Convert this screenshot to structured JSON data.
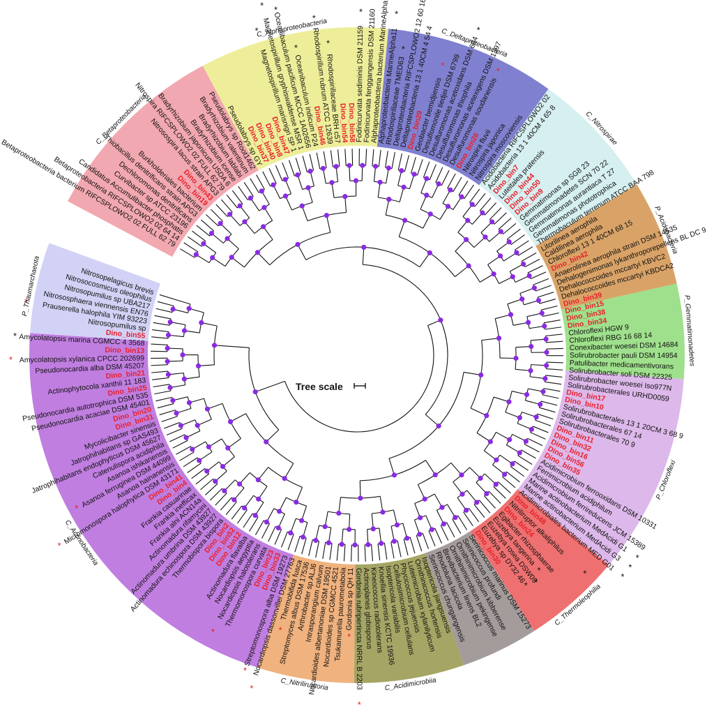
{
  "scale_label": "Tree scale",
  "colors": {
    "bold_bin": "#e8202a",
    "node_dot": "#8a2be2",
    "branch": "#111111"
  },
  "clades": [
    {
      "name": "C_Betaproteobacteria",
      "color": "#f2a8b0",
      "start": 10,
      "end": 111
    },
    {
      "name": "C_Alphaproteobacteria",
      "color": "#eeee9a",
      "start": 111,
      "end": 211
    },
    {
      "name": "C_Deltaproteobacteria",
      "color": "#8080d0",
      "start": 211,
      "end": 301
    },
    {
      "name": "C_Nitrospirae",
      "color": "#d6eff0",
      "start": 301,
      "end": 369
    },
    {
      "name": "P_Acidobacteria",
      "color": "#d9a368",
      "start": 369,
      "end": 425
    },
    {
      "name": "P_Gemmatimonadetes",
      "color": "#9fe08c",
      "start": 425,
      "end": 475
    },
    {
      "name": "P_Chloroflexi",
      "color": "#ddb8ea",
      "start": 475,
      "end": 581
    },
    {
      "name": "C_Thermoleophilia",
      "color": "#ee7070",
      "start": 581,
      "end": 633
    },
    {
      "name": "",
      "color": "#a49b9b",
      "start": 633,
      "end": 674
    },
    {
      "name": "C_Acidimicrobiia",
      "color": "#a5a565",
      "start": 674,
      "end": 732
    },
    {
      "name": "C_Nitriliruptoria",
      "color": "#f0b27e",
      "start": 732,
      "end": 783
    },
    {
      "name": "C_Actinobacteria",
      "color": "#c07ee0",
      "start": 783,
      "end": 1010
    },
    {
      "name": "P_Thaumarchaeota",
      "color": "#d2d2f6",
      "start": 1010,
      "end": 1058
    }
  ],
  "leaves": [
    {
      "label": "Betaproteobacteria bacterium RIFCSPLOWO2 02 FULL 62 79",
      "bold": false,
      "star": ""
    },
    {
      "label": "Betaproteobacteria RIFCSPLOWO2 02 64 14",
      "bold": false,
      "star": ""
    },
    {
      "label": "Candidatus Accumulibacter phosphatis",
      "bold": false,
      "star": ""
    },
    {
      "label": "Curvibacter sp ATCC 23196",
      "bold": false,
      "star": ""
    },
    {
      "label": "Dechloromonas denitrificans",
      "bold": false,
      "star": ""
    },
    {
      "label": "Thiobacillus denitrificans strain APG3",
      "bold": false,
      "star": ""
    },
    {
      "label": "Burkholderiales bacterium",
      "bold": false,
      "star": ""
    },
    {
      "label": "Dino_bin19",
      "bold": true,
      "star": ""
    },
    {
      "label": "Dino_bin43",
      "bold": true,
      "star": ""
    },
    {
      "label": "Nitrosospira lacus strain APG3",
      "bold": false,
      "star": ""
    },
    {
      "label": "Nitrospira RIFCSPLOWO2 02 FULL 62 79",
      "bold": false,
      "star": ""
    },
    {
      "label": "Bradyrhizobium japonicum USDA 6",
      "bold": false,
      "star": ""
    },
    {
      "label": "Bradyrhizobium icense",
      "bold": false,
      "star": ""
    },
    {
      "label": "Bradyrhizobium lablabi",
      "bold": false,
      "star": ""
    },
    {
      "label": "Bradyrhizobium valentinum",
      "bold": false,
      "star": ""
    },
    {
      "label": "Pseudolabrys sp Root1462",
      "bold": false,
      "star": ""
    },
    {
      "label": "Pseudolabrys sp GY",
      "bold": false,
      "star": ""
    },
    {
      "label": "Dino_bin37",
      "bold": true,
      "star": ""
    },
    {
      "label": "Dino_bin40",
      "bold": true,
      "star": ""
    },
    {
      "label": "Dino_bin8",
      "bold": true,
      "star": ""
    },
    {
      "label": "Dino_bin47",
      "bold": true,
      "star": ""
    },
    {
      "label": "Magnetospirillum marisnigri SP 1",
      "bold": false,
      "star": "black"
    },
    {
      "label": "Magnetospirillum gryphiswaldense MSR 1",
      "bold": false,
      "star": "black"
    },
    {
      "label": "Oceanibaculum pacificum MCCC 1A02656",
      "bold": false,
      "star": "black"
    },
    {
      "label": "Oceanibaculum indicum P24",
      "bold": false,
      "star": "black"
    },
    {
      "label": "Dino_bin46",
      "bold": true,
      "star": ""
    },
    {
      "label": "Rhodospirillum rubrum ATCC 12639",
      "bold": false,
      "star": "black"
    },
    {
      "label": "Rhodospirillaceae BRH c57",
      "bold": false,
      "star": "black"
    },
    {
      "label": "Dino_bin54",
      "bold": true,
      "star": ""
    },
    {
      "label": "Dino_bin58",
      "bold": true,
      "star": ""
    },
    {
      "label": "Fodinicurvata sediminis DSM 21159",
      "bold": false,
      "star": "black"
    },
    {
      "label": "Fodinicurvata fenggangensis DSM 21160",
      "bold": false,
      "star": "black"
    },
    {
      "label": "Alphaproteobacteria bacterium MarineAlpha10",
      "bold": false,
      "star": "black"
    },
    {
      "label": "Alphaproteobacteria MarineAlpha11",
      "bold": false,
      "star": "black"
    },
    {
      "label": "Rhodospirillaceae TMED63",
      "bold": false,
      "star": "black"
    },
    {
      "label": "Deltaproteobacteria RIFCSPLOWO2 12 60 16",
      "bold": false,
      "star": ""
    },
    {
      "label": "Deltaproteobacteria 13 1 40CM 4 54 4",
      "bold": false,
      "star": ""
    },
    {
      "label": "Dino_bin29",
      "bold": true,
      "star": ""
    },
    {
      "label": "Geobacter bemidjiensis",
      "bold": false,
      "star": "red"
    },
    {
      "label": "Desulfomonile tiedjei DSM 6799",
      "bold": false,
      "star": ""
    },
    {
      "label": "Desulfuromonas acetoxidans DSM 684",
      "bold": false,
      "star": "black"
    },
    {
      "label": "Desulfuromonas thiophila",
      "bold": false,
      "star": ""
    },
    {
      "label": "Desulfuromonas acetexigens DSM 1397",
      "bold": false,
      "star": ""
    },
    {
      "label": "Desulfuromonas soudanensis",
      "bold": false,
      "star": "red"
    },
    {
      "label": "Dino_bin26",
      "bold": true,
      "star": ""
    },
    {
      "label": "Nitrospira fluvii",
      "bold": false,
      "star": ""
    },
    {
      "label": "Nitrospira japonica",
      "bold": false,
      "star": ""
    },
    {
      "label": "Nitrospira moscoviensis",
      "bold": false,
      "star": ""
    },
    {
      "label": "Acidobacteria RIFCSPLOWO2 02",
      "bold": false,
      "star": ""
    },
    {
      "label": "Acidobacteria 13 1 40CM 4 65 8",
      "bold": false,
      "star": ""
    },
    {
      "label": "Dino_bin7",
      "bold": true,
      "star": ""
    },
    {
      "label": "Luteitalea pratensis",
      "bold": false,
      "star": ""
    },
    {
      "label": "Dino_bin44",
      "bold": true,
      "star": ""
    },
    {
      "label": "Dino_bin50",
      "bold": true,
      "star": ""
    },
    {
      "label": "Dino_bin9",
      "bold": true,
      "star": ""
    },
    {
      "label": "Gemmatimonas sp SG8 23",
      "bold": false,
      "star": ""
    },
    {
      "label": "Gemmatimonadetes SCN 70 22",
      "bold": false,
      "star": ""
    },
    {
      "label": "Gemmatimonas aurantiaca T 27",
      "bold": false,
      "star": ""
    },
    {
      "label": "Gemmatimonas phototrophica",
      "bold": false,
      "star": ""
    },
    {
      "label": "Thermobaculum terrenum ATCC BAA 798",
      "bold": false,
      "star": ""
    },
    {
      "label": "Litorilinea aerophila",
      "bold": false,
      "star": ""
    },
    {
      "label": "Caldilinea aerophila",
      "bold": false,
      "star": ""
    },
    {
      "label": "Chloroflexi 13 1 40CM 68 15",
      "bold": false,
      "star": ""
    },
    {
      "label": "Dino_bin42",
      "bold": true,
      "star": ""
    },
    {
      "label": "Anaerolinea aerophila strain DSM 14535",
      "bold": false,
      "star": ""
    },
    {
      "label": "Dehalogenimonas lykanthroporepellens BL DC 9",
      "bold": false,
      "star": ""
    },
    {
      "label": "Dehalococcoides mccartyi KBVC2",
      "bold": false,
      "star": ""
    },
    {
      "label": "Dehalococcoides mccartyi KBDCA2",
      "bold": false,
      "star": ""
    },
    {
      "label": "Dino_bin39",
      "bold": true,
      "star": ""
    },
    {
      "label": "Dino_bin15",
      "bold": true,
      "star": ""
    },
    {
      "label": "Dino_bin38",
      "bold": true,
      "star": ""
    },
    {
      "label": "Dino_bin34",
      "bold": true,
      "star": ""
    },
    {
      "label": "Chloroflexi HGW 9",
      "bold": false,
      "star": ""
    },
    {
      "label": "Chloroflexi RBG 16 68 14",
      "bold": false,
      "star": ""
    },
    {
      "label": "Conexibacter woesei DSM 14684",
      "bold": false,
      "star": ""
    },
    {
      "label": "Solirubrobacter pauli DSM 14954",
      "bold": false,
      "star": ""
    },
    {
      "label": "Patulibacter medicamentivorans",
      "bold": false,
      "star": ""
    },
    {
      "label": "Solirubrobacter soli DSM 22325",
      "bold": false,
      "star": ""
    },
    {
      "label": "Solirubrobacter woesei Iso977N",
      "bold": false,
      "star": ""
    },
    {
      "label": "Solirubrobacterales URHD0059",
      "bold": false,
      "star": ""
    },
    {
      "label": "Dino_bin17",
      "bold": true,
      "star": ""
    },
    {
      "label": "Dino_bin10",
      "bold": true,
      "star": ""
    },
    {
      "label": "Solirubrobacterales 13 1 20CM 3 68 9",
      "bold": false,
      "star": ""
    },
    {
      "label": "Solirubrobacterales 67 14",
      "bold": false,
      "star": ""
    },
    {
      "label": "Solirubrobacterales 70 9",
      "bold": false,
      "star": ""
    },
    {
      "label": "Dino_bin11",
      "bold": true,
      "star": ""
    },
    {
      "label": "Dino_bin32",
      "bold": true,
      "star": ""
    },
    {
      "label": "Dino_bin16",
      "bold": true,
      "star": ""
    },
    {
      "label": "Dino_bin56",
      "bold": true,
      "star": ""
    },
    {
      "label": "Dino_bin35",
      "bold": true,
      "star": ""
    },
    {
      "label": "Acidimicrobium ferrooxidans DSM 10331",
      "bold": false,
      "star": ""
    },
    {
      "label": "Ferrimicrobium acidiphilum",
      "bold": false,
      "star": ""
    },
    {
      "label": "Acidimicrobium ferrireducens JCM 15389",
      "bold": false,
      "star": ""
    },
    {
      "label": "Marine actinobacterium MedAcidi G1",
      "bold": false,
      "star": "black"
    },
    {
      "label": "Marine actinobacterium MedAcidi G3",
      "bold": false,
      "star": "black"
    },
    {
      "label": "Acidimicrobiales bacterium MED G01",
      "bold": false,
      "star": "black"
    },
    {
      "label": "Dino_bin48",
      "bold": true,
      "star": ""
    },
    {
      "label": "Nitriliruptor alkaliphilus",
      "bold": false,
      "star": "black"
    },
    {
      "label": "Dino_bin24",
      "bold": true,
      "star": ""
    },
    {
      "label": "Egibacter rhizosphaerae",
      "bold": false,
      "star": ""
    },
    {
      "label": "Euzebya tangerina",
      "bold": false,
      "star": "black"
    },
    {
      "label": "Euzebya rosea DSW09",
      "bold": false,
      "star": "black"
    },
    {
      "label": "Euzebya sp DY32 46",
      "bold": false,
      "star": "black"
    },
    {
      "label": "Dino_bin30",
      "bold": true,
      "star": ""
    },
    {
      "label": "Serinicoccus marinus DSM 15273",
      "bold": false,
      "star": ""
    },
    {
      "label": "Serinicoccus profundi",
      "bold": false,
      "star": ""
    },
    {
      "label": "Ornithinimicrobium kibberense",
      "bold": false,
      "star": ""
    },
    {
      "label": "Ornithinimicrobium pekingense",
      "bold": false,
      "star": ""
    },
    {
      "label": "Brevibacterium linens BL2",
      "bold": false,
      "star": ""
    },
    {
      "label": "Rhodoluna lacicola",
      "bold": false,
      "star": ""
    },
    {
      "label": "Serinicoccus chungangensis",
      "bold": false,
      "star": ""
    },
    {
      "label": "Isoptericola jiangsuensis",
      "bold": false,
      "star": ""
    },
    {
      "label": "Ornithinicoccus hortensis",
      "bold": false,
      "star": ""
    },
    {
      "label": "Luteimicrobium xylanilyticum",
      "bold": false,
      "star": ""
    },
    {
      "label": "Phycicoccus jejuensis",
      "bold": false,
      "star": ""
    },
    {
      "label": "Cellulosimicrobium cellulans",
      "bold": false,
      "star": ""
    },
    {
      "label": "Isoptericola variabilis",
      "bold": false,
      "star": ""
    },
    {
      "label": "Knoellia sinensis KCTC 19936",
      "bold": false,
      "star": ""
    },
    {
      "label": "Kineococcus radiotolerans",
      "bold": false,
      "star": ""
    },
    {
      "label": "Actinoplanes globisporus",
      "bold": false,
      "star": ""
    },
    {
      "label": "Gordonia rubripertincta NRRL B 2203",
      "bold": false,
      "star": "red"
    },
    {
      "label": "Gordonia sp QH 11",
      "bold": false,
      "star": "red"
    },
    {
      "label": "Tsukamurella paurometabola",
      "bold": false,
      "star": ""
    },
    {
      "label": "Nocardioides sp CGMCC 4521",
      "bold": false,
      "star": ""
    },
    {
      "label": "Nocardioides albertanoniae DSM 19501",
      "bold": false,
      "star": ""
    },
    {
      "label": "Intrasporangium calvum",
      "bold": false,
      "star": ""
    },
    {
      "label": "Arthrobacter sp ALJ6",
      "bold": false,
      "star": ""
    },
    {
      "label": "Streptomyces albus DSM 17536",
      "bold": false,
      "star": ""
    },
    {
      "label": "Thermobifida fusca",
      "bold": false,
      "star": "red"
    },
    {
      "label": "Nocardiopsis dassonvillei DSM 27763",
      "bold": false,
      "star": "red"
    },
    {
      "label": "Streptomonospora alba DSM 19273",
      "bold": false,
      "star": "red"
    },
    {
      "label": "Dino_bin33",
      "bold": true,
      "star": ""
    },
    {
      "label": "Dino_bin23",
      "bold": true,
      "star": ""
    },
    {
      "label": "Thermomonospora curvata",
      "bold": false,
      "star": ""
    },
    {
      "label": "Nocardiopsis halotolerans",
      "bold": false,
      "star": "red"
    },
    {
      "label": "Nocardiopsis aegyptia",
      "bold": false,
      "star": ""
    },
    {
      "label": "Actinomadura flavalba",
      "bold": false,
      "star": ""
    },
    {
      "label": "Dino_bin12",
      "bold": true,
      "star": ""
    },
    {
      "label": "Dino_bin52",
      "bold": true,
      "star": ""
    },
    {
      "label": "Dino_bin2",
      "bold": true,
      "star": ""
    },
    {
      "label": "Thermobispora bispora",
      "bold": false,
      "star": ""
    },
    {
      "label": "Actinomadura echinospora DSM 43927",
      "bold": false,
      "star": ""
    },
    {
      "label": "Actinomadura umbrina DSM 43927",
      "bold": false,
      "star": ""
    },
    {
      "label": "Actinomadura rifamycini",
      "bold": false,
      "star": ""
    },
    {
      "label": "Frankia alni ACN14a",
      "bold": false,
      "star": ""
    },
    {
      "label": "Frankia inefficax",
      "bold": false,
      "star": ""
    },
    {
      "label": "Frankia casuarinae",
      "bold": false,
      "star": ""
    },
    {
      "label": "Dino_bin4",
      "bold": true,
      "star": ""
    },
    {
      "label": "Dino_bin41",
      "bold": true,
      "star": ""
    },
    {
      "label": "Micromonospora halophytica DSM 43171",
      "bold": false,
      "star": "red"
    },
    {
      "label": "Asanoa hainanensis",
      "bold": false,
      "star": ""
    },
    {
      "label": "Asanoa ferruginea DSM 44099",
      "bold": false,
      "star": "red"
    },
    {
      "label": "Asanoa ishikariensis",
      "bold": false,
      "star": ""
    },
    {
      "label": "Catenulispora acidiphila",
      "bold": false,
      "star": ""
    },
    {
      "label": "Jatrophihabitans endophyticus DSM 45627",
      "bold": false,
      "star": ""
    },
    {
      "label": "Jatrophihabitans sp GAS493",
      "bold": false,
      "star": ""
    },
    {
      "label": "Mycolicibacter sinensis",
      "bold": false,
      "star": ""
    },
    {
      "label": "Dino_bin31",
      "bold": true,
      "star": ""
    },
    {
      "label": "Dino_bin20",
      "bold": true,
      "star": ""
    },
    {
      "label": "Pseudonocardia acaciae DSM 45401",
      "bold": false,
      "star": ""
    },
    {
      "label": "Pseudonocardia autotrophica DSM 535",
      "bold": false,
      "star": ""
    },
    {
      "label": "Dino_bin25",
      "bold": true,
      "star": ""
    },
    {
      "label": "Actinophytocola xanthii 11 183",
      "bold": false,
      "star": ""
    },
    {
      "label": "Dino_bin21",
      "bold": true,
      "star": ""
    },
    {
      "label": "Pseudonocardia alba DSM 45207",
      "bold": false,
      "star": ""
    },
    {
      "label": "Amycolatopsis xylanica CPCC 202699",
      "bold": false,
      "star": "red"
    },
    {
      "label": "Dino_bin13",
      "bold": true,
      "star": ""
    },
    {
      "label": "Amycolatopsis marina CGMCC 4 3568",
      "bold": false,
      "star": "black"
    },
    {
      "label": "Dino_bin55",
      "bold": true,
      "star": ""
    },
    {
      "label": "Nitrosopumilus sp",
      "bold": false,
      "star": ""
    },
    {
      "label": "Prauserella halophila YIM 93223",
      "bold": false,
      "star": "red"
    },
    {
      "label": "Nitrososphaera viennensis EN76",
      "bold": false,
      "star": ""
    },
    {
      "label": "Nitrosopumilus sp UBA217",
      "bold": false,
      "star": ""
    },
    {
      "label": "Nitrosocosmicus oleophilus",
      "bold": false,
      "star": ""
    },
    {
      "label": "Nitrosopelagicus brevis",
      "bold": false,
      "star": ""
    }
  ]
}
